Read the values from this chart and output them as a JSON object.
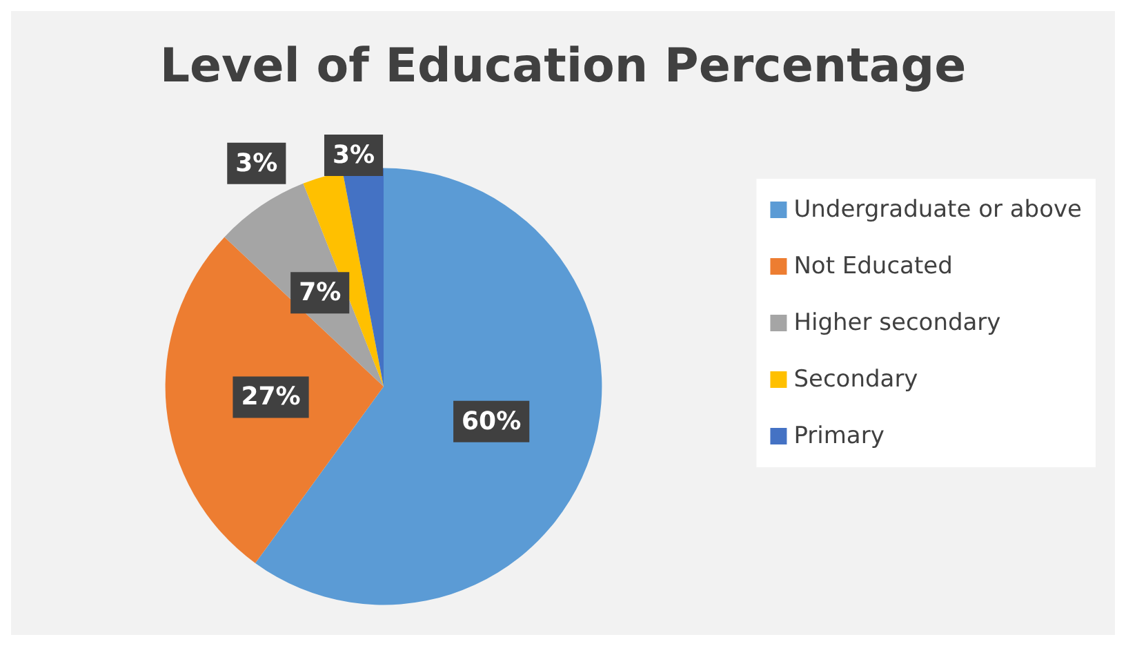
{
  "chart_data": {
    "type": "pie",
    "title": "Level of Education Percentage",
    "categories": [
      "Undergraduate or above",
      "Not Educated",
      "Higher secondary",
      "Secondary",
      "Primary"
    ],
    "values": [
      60,
      27,
      7,
      3,
      3
    ],
    "colors": [
      "#5b9bd5",
      "#ed7d31",
      "#a5a5a5",
      "#ffc000",
      "#4472c4"
    ],
    "value_labels": [
      "60%",
      "27%",
      "7%",
      "3%",
      "3%"
    ],
    "legend": "right"
  }
}
